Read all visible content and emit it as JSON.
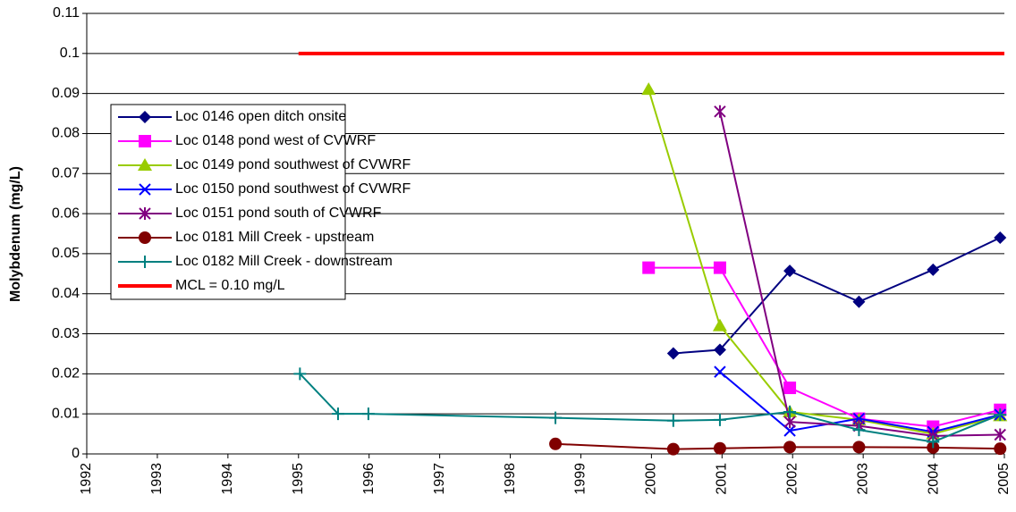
{
  "chart_data": {
    "type": "line",
    "y_label": "Molybdenum (mg/L)",
    "xlim": [
      1992,
      2005
    ],
    "xticks": [
      1992,
      1993,
      1994,
      1995,
      1996,
      1997,
      1998,
      1999,
      2000,
      2001,
      2002,
      2003,
      2004,
      2005
    ],
    "ylim": [
      0,
      0.11
    ],
    "yticks": [
      0,
      0.01,
      0.02,
      0.03,
      0.04,
      0.05,
      0.06,
      0.07,
      0.08,
      0.09,
      0.1,
      0.11
    ],
    "grid": true,
    "legend": "upper left",
    "series": [
      {
        "name": "Loc 0146 open ditch onsite",
        "color": "#000080",
        "marker": "diamond",
        "x": [
          2000.31,
          2000.97,
          2001.96,
          2002.94,
          2003.99,
          2004.94
        ],
        "values": [
          0.0251,
          0.026,
          0.0457,
          0.038,
          0.046,
          0.054
        ]
      },
      {
        "name": "Loc 0148 pond west of CVWRF",
        "color": "#ff00ff",
        "marker": "square",
        "x": [
          1999.96,
          2000.97,
          2001.96,
          2002.94,
          2003.99,
          2004.94
        ],
        "values": [
          0.0465,
          0.0465,
          0.0165,
          0.0088,
          0.0068,
          0.011
        ]
      },
      {
        "name": "Loc 0149 pond southwest of CVWRF",
        "color": "#99cc00",
        "marker": "triangle",
        "x": [
          1999.96,
          2000.97,
          2001.96,
          2002.94,
          2003.99,
          2004.94
        ],
        "values": [
          0.091,
          0.032,
          0.0105,
          0.0085,
          0.005,
          0.0095
        ]
      },
      {
        "name": "Loc 0150 pond southwest of CVWRF",
        "color": "#0000ff",
        "marker": "x",
        "x": [
          2000.97,
          2001.96,
          2002.94,
          2003.99,
          2004.94
        ],
        "values": [
          0.0205,
          0.0058,
          0.0088,
          0.0055,
          0.0098
        ]
      },
      {
        "name": "Loc 0151 pond south of CVWRF",
        "color": "#800080",
        "marker": "star",
        "x": [
          2000.97,
          2001.96,
          2002.94,
          2003.99,
          2004.94
        ],
        "values": [
          0.0855,
          0.008,
          0.007,
          0.0045,
          0.0048
        ]
      },
      {
        "name": "Loc 0181 Mill Creek - upstream",
        "color": "#800000",
        "marker": "circle",
        "x": [
          1998.64,
          2000.31,
          2000.97,
          2001.96,
          2002.94,
          2003.99,
          2004.94
        ],
        "values": [
          0.0025,
          0.0012,
          0.0014,
          0.0017,
          0.0017,
          0.0016,
          0.0013
        ]
      },
      {
        "name": "Loc 0182 Mill Creek - downstream",
        "color": "#008080",
        "marker": "plus",
        "x": [
          1995.02,
          1995.56,
          1995.99,
          1998.64,
          2000.31,
          2000.97,
          2001.96,
          2002.94,
          2003.99,
          2004.94
        ],
        "values": [
          0.02,
          0.01,
          0.01,
          0.009,
          0.0083,
          0.0085,
          0.0105,
          0.006,
          0.003,
          0.0098
        ]
      },
      {
        "name": "MCL = 0.10 mg/L",
        "color": "#ff0000",
        "marker": "none",
        "width": 4,
        "x": [
          1995,
          2005
        ],
        "values": [
          0.1,
          0.1
        ]
      }
    ]
  }
}
